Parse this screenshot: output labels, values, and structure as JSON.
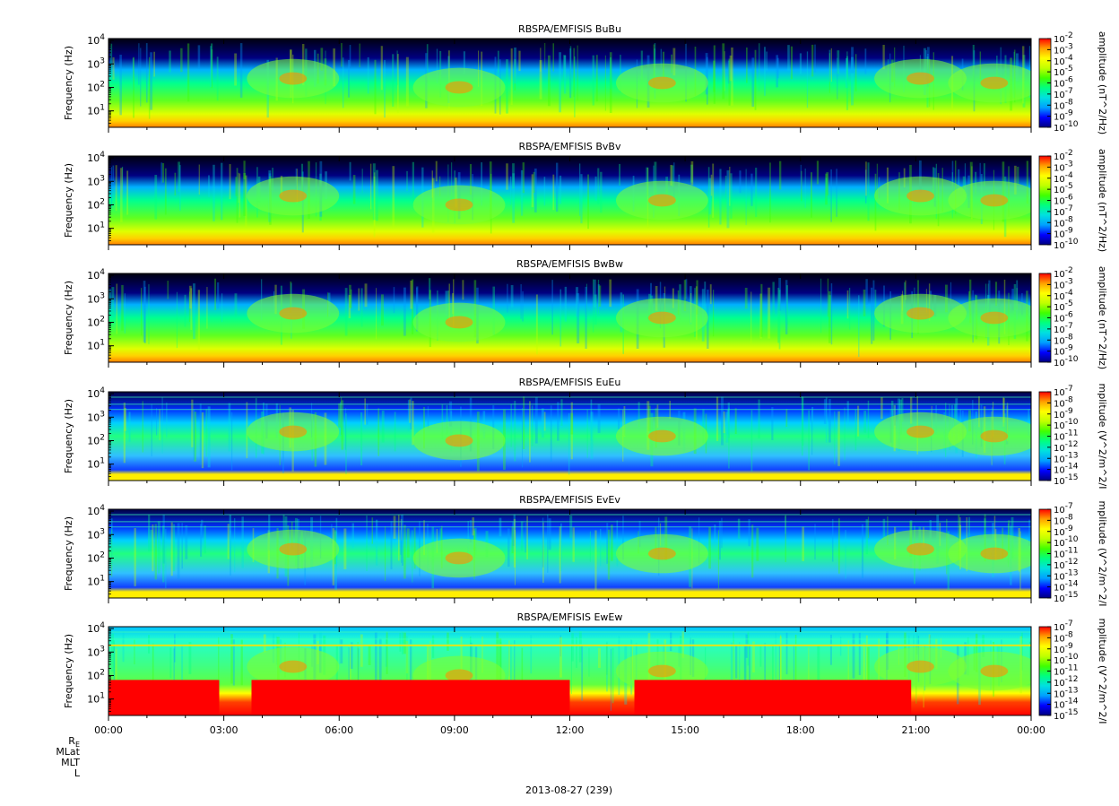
{
  "chart_data": [
    {
      "type": "heatmap",
      "title": "RBSPA/EMFISIS  BuBu",
      "ylabel": "Frequency (Hz)",
      "yscale": "log",
      "yticks": [
        "10^1",
        "10^2",
        "10^3",
        "10^4"
      ],
      "ylim": [
        2,
        12000
      ],
      "colorbar_label": "amplitude (nT^2/Hz)",
      "colorbar_ticks": [
        "10^-2",
        "10^-3",
        "10^-4",
        "10^-5",
        "10^-6",
        "10^-7",
        "10^-8",
        "10^-9",
        "10^-10"
      ],
      "zlim": [
        1e-10,
        0.01
      ]
    },
    {
      "type": "heatmap",
      "title": "RBSPA/EMFISIS  BvBv",
      "ylabel": "Frequency (Hz)",
      "yscale": "log",
      "yticks": [
        "10^1",
        "10^2",
        "10^3",
        "10^4"
      ],
      "ylim": [
        2,
        12000
      ],
      "colorbar_label": "amplitude (nT^2/Hz)",
      "colorbar_ticks": [
        "10^-2",
        "10^-3",
        "10^-4",
        "10^-5",
        "10^-6",
        "10^-7",
        "10^-8",
        "10^-9",
        "10^-10"
      ],
      "zlim": [
        1e-10,
        0.01
      ]
    },
    {
      "type": "heatmap",
      "title": "RBSPA/EMFISIS  BwBw",
      "ylabel": "Frequency (Hz)",
      "yscale": "log",
      "yticks": [
        "10^1",
        "10^2",
        "10^3",
        "10^4"
      ],
      "ylim": [
        2,
        12000
      ],
      "colorbar_label": "amplitude (nT^2/Hz)",
      "colorbar_ticks": [
        "10^-2",
        "10^-3",
        "10^-4",
        "10^-5",
        "10^-6",
        "10^-7",
        "10^-8",
        "10^-9",
        "10^-10"
      ],
      "zlim": [
        1e-10,
        0.01
      ]
    },
    {
      "type": "heatmap",
      "title": "RBSPA/EMFISIS  EuEu",
      "ylabel": "Frequency (Hz)",
      "yscale": "log",
      "yticks": [
        "10^1",
        "10^2",
        "10^3",
        "10^4"
      ],
      "ylim": [
        2,
        12000
      ],
      "colorbar_label": "mplitude (V^2/m^2/I",
      "colorbar_ticks": [
        "10^-7",
        "10^-8",
        "10^-9",
        "10^-10",
        "10^-11",
        "10^-12",
        "10^-13",
        "10^-14",
        "10^-15"
      ],
      "zlim": [
        1e-15,
        1e-07
      ]
    },
    {
      "type": "heatmap",
      "title": "RBSPA/EMFISIS  EvEv",
      "ylabel": "Frequency (Hz)",
      "yscale": "log",
      "yticks": [
        "10^1",
        "10^2",
        "10^3",
        "10^4"
      ],
      "ylim": [
        2,
        12000
      ],
      "colorbar_label": "mplitude (V^2/m^2/I",
      "colorbar_ticks": [
        "10^-7",
        "10^-8",
        "10^-9",
        "10^-10",
        "10^-11",
        "10^-12",
        "10^-13",
        "10^-14",
        "10^-15"
      ],
      "zlim": [
        1e-15,
        1e-07
      ]
    },
    {
      "type": "heatmap",
      "title": "RBSPA/EMFISIS  EwEw",
      "ylabel": "Frequency (Hz)",
      "yscale": "log",
      "yticks": [
        "10^1",
        "10^2",
        "10^3",
        "10^4"
      ],
      "ylim": [
        2,
        12000
      ],
      "colorbar_label": "mplitude (V^2/m^2/I",
      "colorbar_ticks": [
        "10^-7",
        "10^-8",
        "10^-9",
        "10^-10",
        "10^-11",
        "10^-12",
        "10^-13",
        "10^-14",
        "10^-15"
      ],
      "zlim": [
        1e-15,
        1e-07
      ]
    }
  ],
  "x_axis": {
    "ticks": [
      "00:00",
      "03:00",
      "06:00",
      "09:00",
      "12:00",
      "15:00",
      "18:00",
      "21:00",
      "00:00"
    ],
    "stack_labels": [
      "RE",
      "MLat",
      "MLT",
      "L"
    ],
    "date_label": "2013-08-27 (239)"
  },
  "colormap": [
    "#000080",
    "#0000ff",
    "#00a0ff",
    "#00e0e0",
    "#00ff80",
    "#40ff00",
    "#c0ff00",
    "#ffff00",
    "#ffa000",
    "#ff0000"
  ]
}
